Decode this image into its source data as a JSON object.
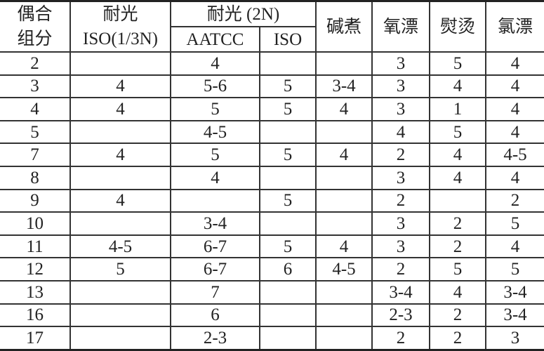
{
  "header": {
    "component": "偶合组分",
    "component_line1": "偶合",
    "component_line2": "组分",
    "light_iso_group": "耐光",
    "light_iso_sub": "ISO(1/3N)",
    "light_2n_group": "耐光 (2N)",
    "light_2n_aatcc": "AATCC",
    "light_2n_iso": "ISO",
    "alkali_boil": "碱煮",
    "oxygen_bleach": "氧漂",
    "ironing": "熨烫",
    "chlorine_bleach": "氯漂"
  },
  "rows": [
    [
      "2",
      "",
      "4",
      "",
      "",
      "3",
      "5",
      "4"
    ],
    [
      "3",
      "4",
      "5-6",
      "5",
      "3-4",
      "3",
      "4",
      "4"
    ],
    [
      "4",
      "4",
      "5",
      "5",
      "4",
      "3",
      "1",
      "4"
    ],
    [
      "5",
      "",
      "4-5",
      "",
      "",
      "4",
      "5",
      "4"
    ],
    [
      "7",
      "4",
      "5",
      "5",
      "4",
      "2",
      "4",
      "4-5"
    ],
    [
      "8",
      "",
      "4",
      "",
      "",
      "3",
      "4",
      "4"
    ],
    [
      "9",
      "4",
      "",
      "5",
      "",
      "2",
      "",
      "2"
    ],
    [
      "10",
      "",
      "3-4",
      "",
      "",
      "3",
      "2",
      "5"
    ],
    [
      "11",
      "4-5",
      "6-7",
      "5",
      "4",
      "3",
      "2",
      "4"
    ],
    [
      "12",
      "5",
      "6-7",
      "6",
      "4-5",
      "2",
      "5",
      "5"
    ],
    [
      "13",
      "",
      "7",
      "",
      "",
      "3-4",
      "4",
      "3-4"
    ],
    [
      "16",
      "",
      "6",
      "",
      "",
      "2-3",
      "2",
      "3-4"
    ],
    [
      "17",
      "",
      "2-3",
      "",
      "",
      "2",
      "2",
      "3"
    ]
  ]
}
